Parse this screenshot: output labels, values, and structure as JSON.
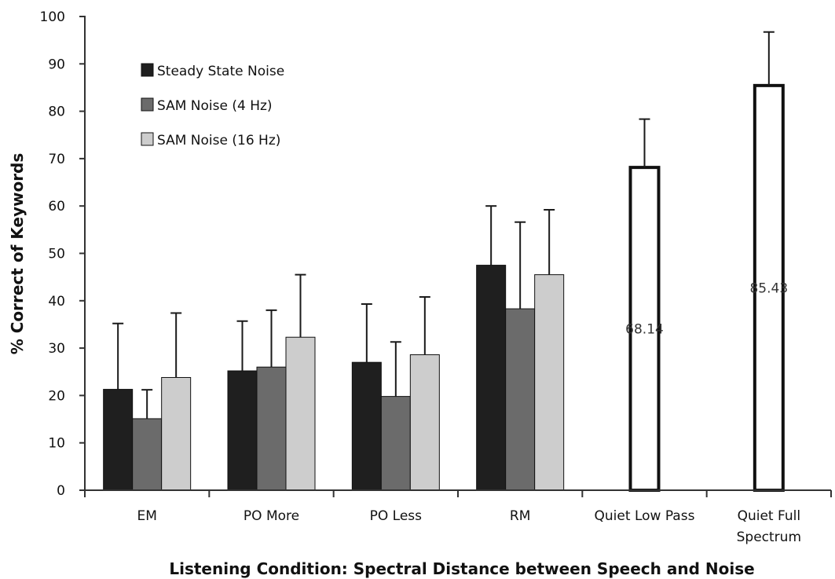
{
  "chart_data": {
    "type": "bar",
    "xlabel": "Listening Condition: Spectral Distance between Speech and Noise",
    "ylabel": "% Correct of Keywords",
    "ylim": [
      0,
      100
    ],
    "yticks": [
      0,
      10,
      20,
      30,
      40,
      50,
      60,
      70,
      80,
      90,
      100
    ],
    "categories": [
      {
        "label_lines": [
          "EM"
        ]
      },
      {
        "label_lines": [
          "PO More"
        ]
      },
      {
        "label_lines": [
          "PO Less"
        ]
      },
      {
        "label_lines": [
          "RM"
        ]
      },
      {
        "label_lines": [
          "Quiet Low Pass"
        ]
      },
      {
        "label_lines": [
          "Quiet Full",
          "Spectrum"
        ]
      }
    ],
    "series": [
      {
        "name": "Steady State Noise",
        "color": "#1f1f1f",
        "values": [
          21.3,
          25.2,
          27.0,
          47.5,
          null,
          null
        ],
        "errors": [
          13.9,
          10.5,
          12.3,
          12.5,
          null,
          null
        ]
      },
      {
        "name": "SAM Noise (4 Hz)",
        "color": "#6b6b6b",
        "values": [
          15.1,
          26.0,
          19.8,
          38.3,
          null,
          null
        ],
        "errors": [
          6.1,
          12.0,
          11.5,
          18.3,
          null,
          null
        ]
      },
      {
        "name": "SAM Noise (16 Hz)",
        "color": "#cdcdcd",
        "values": [
          23.8,
          32.3,
          28.6,
          45.5,
          null,
          null
        ],
        "errors": [
          13.6,
          13.2,
          12.2,
          13.7,
          null,
          null
        ]
      }
    ],
    "quiet_bars": [
      {
        "category_index": 4,
        "value": 68.14,
        "error": 10.2,
        "label": "68.14"
      },
      {
        "category_index": 5,
        "value": 85.43,
        "error": 11.3,
        "label": "85.43"
      }
    ],
    "legend": {
      "placement": "top-left",
      "grid": false
    }
  }
}
